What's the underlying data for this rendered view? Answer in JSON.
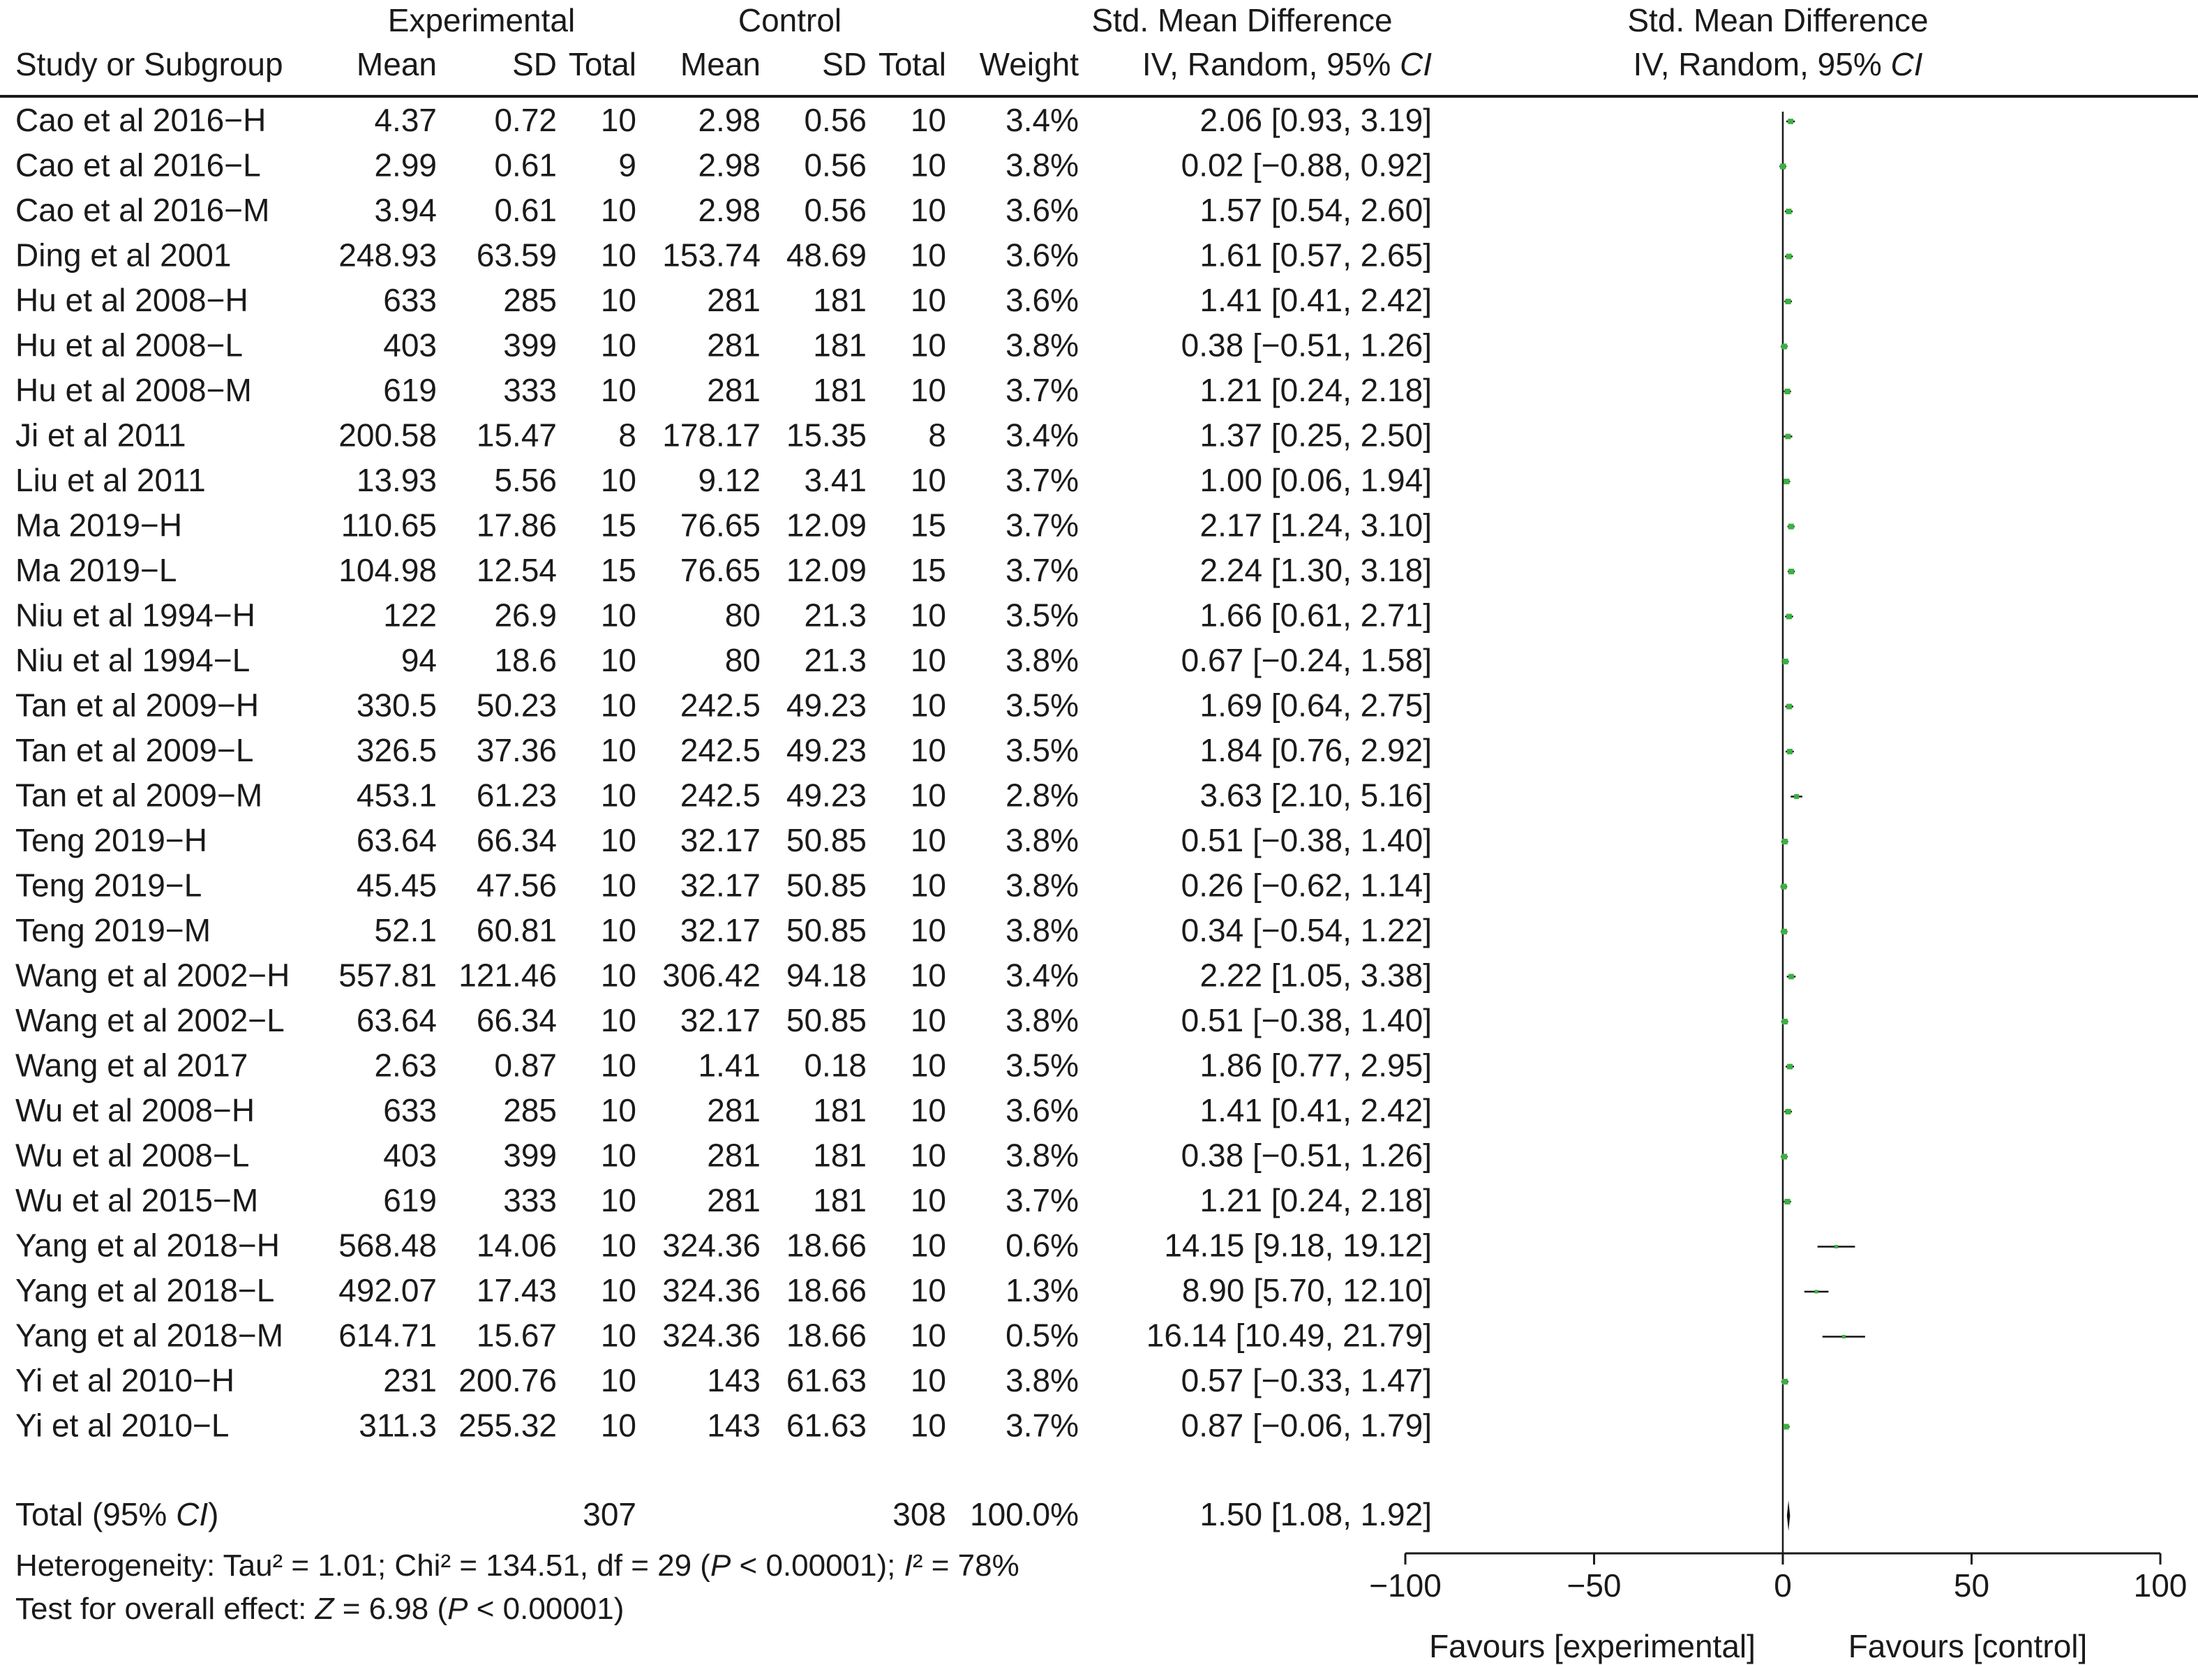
{
  "header": {
    "group_experimental": "Experimental",
    "group_control": "Control",
    "col_smd": "Std. Mean Difference",
    "plot_title": "Std. Mean Difference",
    "col_study": "Study or Subgroup",
    "col_mean": "Mean",
    "col_sd": "SD",
    "col_total": "Total",
    "col_weight": "Weight",
    "col_method_prefix": "IV, Random, 95% ",
    "col_method_ci": "CI",
    "plot_method_prefix": "IV, Random, 95% ",
    "plot_method_ci": "CI"
  },
  "studies": [
    {
      "name": "Cao et al 2016−H",
      "exp_mean": "4.37",
      "exp_sd": "0.72",
      "exp_total": "10",
      "ctl_mean": "2.98",
      "ctl_sd": "0.56",
      "ctl_total": "10",
      "weight": "3.4%",
      "ci_text": "2.06 [0.93, 3.19]",
      "smd": 2.06,
      "lo": 0.93,
      "hi": 3.19
    },
    {
      "name": "Cao et al 2016−L",
      "exp_mean": "2.99",
      "exp_sd": "0.61",
      "exp_total": "9",
      "ctl_mean": "2.98",
      "ctl_sd": "0.56",
      "ctl_total": "10",
      "weight": "3.8%",
      "ci_text": "0.02 [−0.88, 0.92]",
      "smd": 0.02,
      "lo": -0.88,
      "hi": 0.92
    },
    {
      "name": "Cao et al 2016−M",
      "exp_mean": "3.94",
      "exp_sd": "0.61",
      "exp_total": "10",
      "ctl_mean": "2.98",
      "ctl_sd": "0.56",
      "ctl_total": "10",
      "weight": "3.6%",
      "ci_text": "1.57 [0.54, 2.60]",
      "smd": 1.57,
      "lo": 0.54,
      "hi": 2.6
    },
    {
      "name": "Ding et al 2001",
      "exp_mean": "248.93",
      "exp_sd": "63.59",
      "exp_total": "10",
      "ctl_mean": "153.74",
      "ctl_sd": "48.69",
      "ctl_total": "10",
      "weight": "3.6%",
      "ci_text": "1.61 [0.57, 2.65]",
      "smd": 1.61,
      "lo": 0.57,
      "hi": 2.65
    },
    {
      "name": "Hu et al 2008−H",
      "exp_mean": "633",
      "exp_sd": "285",
      "exp_total": "10",
      "ctl_mean": "281",
      "ctl_sd": "181",
      "ctl_total": "10",
      "weight": "3.6%",
      "ci_text": "1.41 [0.41, 2.42]",
      "smd": 1.41,
      "lo": 0.41,
      "hi": 2.42
    },
    {
      "name": "Hu et al 2008−L",
      "exp_mean": "403",
      "exp_sd": "399",
      "exp_total": "10",
      "ctl_mean": "281",
      "ctl_sd": "181",
      "ctl_total": "10",
      "weight": "3.8%",
      "ci_text": "0.38 [−0.51, 1.26]",
      "smd": 0.38,
      "lo": -0.51,
      "hi": 1.26
    },
    {
      "name": "Hu et al 2008−M",
      "exp_mean": "619",
      "exp_sd": "333",
      "exp_total": "10",
      "ctl_mean": "281",
      "ctl_sd": "181",
      "ctl_total": "10",
      "weight": "3.7%",
      "ci_text": "1.21 [0.24, 2.18]",
      "smd": 1.21,
      "lo": 0.24,
      "hi": 2.18
    },
    {
      "name": "Ji et al 2011",
      "exp_mean": "200.58",
      "exp_sd": "15.47",
      "exp_total": "8",
      "ctl_mean": "178.17",
      "ctl_sd": "15.35",
      "ctl_total": "8",
      "weight": "3.4%",
      "ci_text": "1.37 [0.25, 2.50]",
      "smd": 1.37,
      "lo": 0.25,
      "hi": 2.5
    },
    {
      "name": "Liu et al 2011",
      "exp_mean": "13.93",
      "exp_sd": "5.56",
      "exp_total": "10",
      "ctl_mean": "9.12",
      "ctl_sd": "3.41",
      "ctl_total": "10",
      "weight": "3.7%",
      "ci_text": "1.00 [0.06, 1.94]",
      "smd": 1.0,
      "lo": 0.06,
      "hi": 1.94
    },
    {
      "name": "Ma 2019−H",
      "exp_mean": "110.65",
      "exp_sd": "17.86",
      "exp_total": "15",
      "ctl_mean": "76.65",
      "ctl_sd": "12.09",
      "ctl_total": "15",
      "weight": "3.7%",
      "ci_text": "2.17 [1.24, 3.10]",
      "smd": 2.17,
      "lo": 1.24,
      "hi": 3.1
    },
    {
      "name": "Ma 2019−L",
      "exp_mean": "104.98",
      "exp_sd": "12.54",
      "exp_total": "15",
      "ctl_mean": "76.65",
      "ctl_sd": "12.09",
      "ctl_total": "15",
      "weight": "3.7%",
      "ci_text": "2.24 [1.30, 3.18]",
      "smd": 2.24,
      "lo": 1.3,
      "hi": 3.18
    },
    {
      "name": "Niu et al 1994−H",
      "exp_mean": "122",
      "exp_sd": "26.9",
      "exp_total": "10",
      "ctl_mean": "80",
      "ctl_sd": "21.3",
      "ctl_total": "10",
      "weight": "3.5%",
      "ci_text": "1.66 [0.61, 2.71]",
      "smd": 1.66,
      "lo": 0.61,
      "hi": 2.71
    },
    {
      "name": "Niu et al 1994−L",
      "exp_mean": "94",
      "exp_sd": "18.6",
      "exp_total": "10",
      "ctl_mean": "80",
      "ctl_sd": "21.3",
      "ctl_total": "10",
      "weight": "3.8%",
      "ci_text": "0.67 [−0.24, 1.58]",
      "smd": 0.67,
      "lo": -0.24,
      "hi": 1.58
    },
    {
      "name": "Tan et al 2009−H",
      "exp_mean": "330.5",
      "exp_sd": "50.23",
      "exp_total": "10",
      "ctl_mean": "242.5",
      "ctl_sd": "49.23",
      "ctl_total": "10",
      "weight": "3.5%",
      "ci_text": "1.69 [0.64, 2.75]",
      "smd": 1.69,
      "lo": 0.64,
      "hi": 2.75
    },
    {
      "name": "Tan et al 2009−L",
      "exp_mean": "326.5",
      "exp_sd": "37.36",
      "exp_total": "10",
      "ctl_mean": "242.5",
      "ctl_sd": "49.23",
      "ctl_total": "10",
      "weight": "3.5%",
      "ci_text": "1.84 [0.76, 2.92]",
      "smd": 1.84,
      "lo": 0.76,
      "hi": 2.92
    },
    {
      "name": "Tan et al 2009−M",
      "exp_mean": "453.1",
      "exp_sd": "61.23",
      "exp_total": "10",
      "ctl_mean": "242.5",
      "ctl_sd": "49.23",
      "ctl_total": "10",
      "weight": "2.8%",
      "ci_text": "3.63 [2.10, 5.16]",
      "smd": 3.63,
      "lo": 2.1,
      "hi": 5.16
    },
    {
      "name": "Teng 2019−H",
      "exp_mean": "63.64",
      "exp_sd": "66.34",
      "exp_total": "10",
      "ctl_mean": "32.17",
      "ctl_sd": "50.85",
      "ctl_total": "10",
      "weight": "3.8%",
      "ci_text": "0.51 [−0.38, 1.40]",
      "smd": 0.51,
      "lo": -0.38,
      "hi": 1.4
    },
    {
      "name": "Teng 2019−L",
      "exp_mean": "45.45",
      "exp_sd": "47.56",
      "exp_total": "10",
      "ctl_mean": "32.17",
      "ctl_sd": "50.85",
      "ctl_total": "10",
      "weight": "3.8%",
      "ci_text": "0.26 [−0.62, 1.14]",
      "smd": 0.26,
      "lo": -0.62,
      "hi": 1.14
    },
    {
      "name": "Teng 2019−M",
      "exp_mean": "52.1",
      "exp_sd": "60.81",
      "exp_total": "10",
      "ctl_mean": "32.17",
      "ctl_sd": "50.85",
      "ctl_total": "10",
      "weight": "3.8%",
      "ci_text": "0.34 [−0.54, 1.22]",
      "smd": 0.34,
      "lo": -0.54,
      "hi": 1.22
    },
    {
      "name": "Wang et al 2002−H",
      "exp_mean": "557.81",
      "exp_sd": "121.46",
      "exp_total": "10",
      "ctl_mean": "306.42",
      "ctl_sd": "94.18",
      "ctl_total": "10",
      "weight": "3.4%",
      "ci_text": "2.22 [1.05, 3.38]",
      "smd": 2.22,
      "lo": 1.05,
      "hi": 3.38
    },
    {
      "name": "Wang et al 2002−L",
      "exp_mean": "63.64",
      "exp_sd": "66.34",
      "exp_total": "10",
      "ctl_mean": "32.17",
      "ctl_sd": "50.85",
      "ctl_total": "10",
      "weight": "3.8%",
      "ci_text": "0.51 [−0.38, 1.40]",
      "smd": 0.51,
      "lo": -0.38,
      "hi": 1.4
    },
    {
      "name": "Wang et al 2017",
      "exp_mean": "2.63",
      "exp_sd": "0.87",
      "exp_total": "10",
      "ctl_mean": "1.41",
      "ctl_sd": "0.18",
      "ctl_total": "10",
      "weight": "3.5%",
      "ci_text": "1.86 [0.77, 2.95]",
      "smd": 1.86,
      "lo": 0.77,
      "hi": 2.95
    },
    {
      "name": "Wu et al 2008−H",
      "exp_mean": "633",
      "exp_sd": "285",
      "exp_total": "10",
      "ctl_mean": "281",
      "ctl_sd": "181",
      "ctl_total": "10",
      "weight": "3.6%",
      "ci_text": "1.41 [0.41, 2.42]",
      "smd": 1.41,
      "lo": 0.41,
      "hi": 2.42
    },
    {
      "name": "Wu et al 2008−L",
      "exp_mean": "403",
      "exp_sd": "399",
      "exp_total": "10",
      "ctl_mean": "281",
      "ctl_sd": "181",
      "ctl_total": "10",
      "weight": "3.8%",
      "ci_text": "0.38 [−0.51, 1.26]",
      "smd": 0.38,
      "lo": -0.51,
      "hi": 1.26
    },
    {
      "name": "Wu et al 2015−M",
      "exp_mean": "619",
      "exp_sd": "333",
      "exp_total": "10",
      "ctl_mean": "281",
      "ctl_sd": "181",
      "ctl_total": "10",
      "weight": "3.7%",
      "ci_text": "1.21 [0.24, 2.18]",
      "smd": 1.21,
      "lo": 0.24,
      "hi": 2.18
    },
    {
      "name": "Yang et al 2018−H",
      "exp_mean": "568.48",
      "exp_sd": "14.06",
      "exp_total": "10",
      "ctl_mean": "324.36",
      "ctl_sd": "18.66",
      "ctl_total": "10",
      "weight": "0.6%",
      "ci_text": "14.15 [9.18, 19.12]",
      "smd": 14.15,
      "lo": 9.18,
      "hi": 19.12
    },
    {
      "name": "Yang et al 2018−L",
      "exp_mean": "492.07",
      "exp_sd": "17.43",
      "exp_total": "10",
      "ctl_mean": "324.36",
      "ctl_sd": "18.66",
      "ctl_total": "10",
      "weight": "1.3%",
      "ci_text": "8.90 [5.70, 12.10]",
      "smd": 8.9,
      "lo": 5.7,
      "hi": 12.1
    },
    {
      "name": "Yang et al 2018−M",
      "exp_mean": "614.71",
      "exp_sd": "15.67",
      "exp_total": "10",
      "ctl_mean": "324.36",
      "ctl_sd": "18.66",
      "ctl_total": "10",
      "weight": "0.5%",
      "ci_text": "16.14 [10.49, 21.79]",
      "smd": 16.14,
      "lo": 10.49,
      "hi": 21.79
    },
    {
      "name": "Yi et al 2010−H",
      "exp_mean": "231",
      "exp_sd": "200.76",
      "exp_total": "10",
      "ctl_mean": "143",
      "ctl_sd": "61.63",
      "ctl_total": "10",
      "weight": "3.8%",
      "ci_text": "0.57 [−0.33, 1.47]",
      "smd": 0.57,
      "lo": -0.33,
      "hi": 1.47
    },
    {
      "name": "Yi et al 2010−L",
      "exp_mean": "311.3",
      "exp_sd": "255.32",
      "exp_total": "10",
      "ctl_mean": "143",
      "ctl_sd": "61.63",
      "ctl_total": "10",
      "weight": "3.7%",
      "ci_text": "0.87 [−0.06, 1.79]",
      "smd": 0.87,
      "lo": -0.06,
      "hi": 1.79
    }
  ],
  "total": {
    "label_prefix": "Total (95% ",
    "label_ci": "CI",
    "label_suffix": ")",
    "exp_total": "307",
    "ctl_total": "308",
    "weight": "100.0%",
    "ci_text": "1.50 [1.08, 1.92]"
  },
  "footer": {
    "heterogeneity_a": "Heterogeneity: Tau² = 1.01; Chi² = 134.51, df = 29 (",
    "heterogeneity_p": "P",
    "heterogeneity_b": " < 0.00001); ",
    "heterogeneity_i": "I",
    "heterogeneity_c": "² = 78%",
    "overall_a": "Test for overall effect: ",
    "overall_z": "Z",
    "overall_b": " = 6.98 (",
    "overall_p": "P",
    "overall_c": " < 0.00001)"
  },
  "chart_data": {
    "type": "scatter",
    "subtype": "forest-plot",
    "title": "Std. Mean Difference",
    "method": "IV, Random, 95% CI",
    "xlim": [
      -100,
      100
    ],
    "x_ticks": [
      -100,
      -50,
      0,
      50,
      100
    ],
    "x_tick_labels": [
      "−100",
      "−50",
      "0",
      "50",
      "100"
    ],
    "favours_left": "Favours [experimental]",
    "favours_right": "Favours [control]",
    "pooled": {
      "smd": 1.5,
      "lo": 1.08,
      "hi": 1.92
    },
    "marker_color": "#3cb043",
    "note": "per-study estimates in studies[].smd / lo / hi"
  }
}
